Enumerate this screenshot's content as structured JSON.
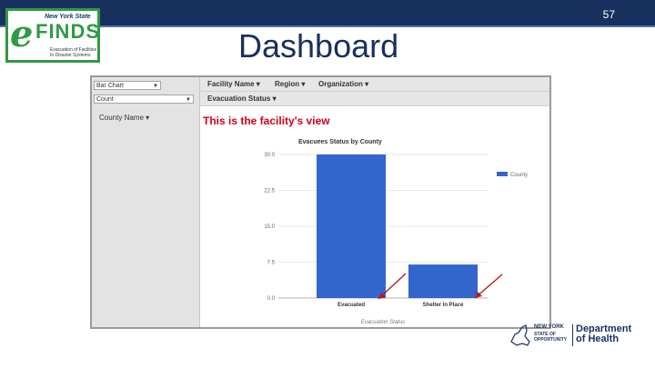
{
  "slide": {
    "number": "57",
    "title": "Dashboard"
  },
  "logo": {
    "state_line": "New York State",
    "letter_e": "e",
    "brand": "FINDS",
    "tagline_1": "Evacuation of Facilities",
    "tagline_2": "In Disaster Systems"
  },
  "dashboard": {
    "chart_type_select": "Bar Chart",
    "measure_select": "Count",
    "filters_row1": [
      "Facility Name",
      "Region",
      "Organization"
    ],
    "filters_row2": [
      "Evacuation Status"
    ],
    "left_panel_header": "County Name",
    "view_note": "This is the facility's view"
  },
  "chart_data": {
    "type": "bar",
    "title": "Evacuees Status by County",
    "categories": [
      "Evacuated",
      "Shelter In Place"
    ],
    "series": [
      {
        "name": "County",
        "values": [
          30,
          7
        ],
        "color": "#3366cc"
      }
    ],
    "xlabel": "Evacuation Status",
    "ylabel": "",
    "ylim": [
      0,
      30
    ],
    "yticks": [
      "30.0",
      "22.5",
      "15.0",
      "7.5",
      "0.0"
    ],
    "grid": true,
    "legend": "right",
    "annotations": "red arrows pointing to each category label"
  },
  "doh_logo": {
    "line1": "NEW YORK",
    "line2": "STATE OF",
    "line3": "OPPORTUNITY",
    "dept_line1": "Department",
    "dept_line2": "of Health"
  }
}
